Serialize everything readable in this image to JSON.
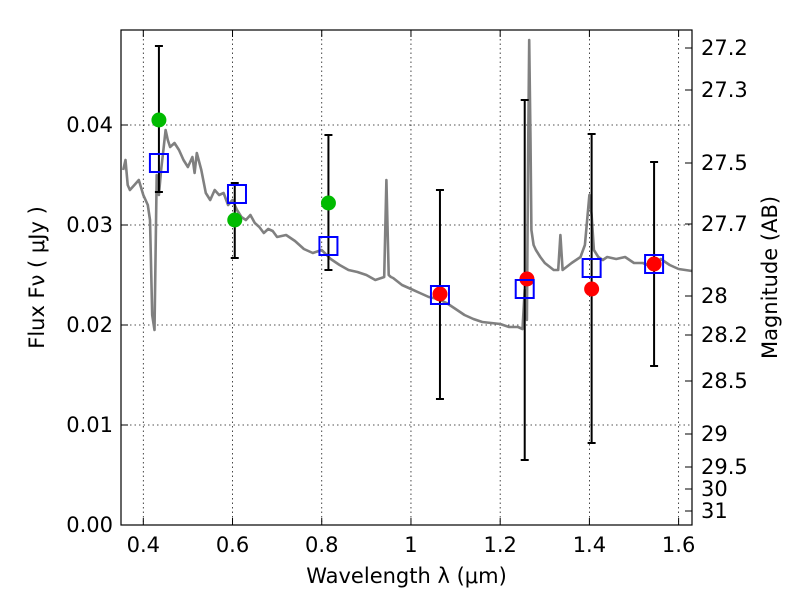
{
  "chart_data": {
    "type": "scatter",
    "xlabel": "Wavelength  λ (μm)",
    "ylabel": "Flux  Fν  ( μJy )",
    "y2label": "Magnitude (AB)",
    "xlim": [
      0.35,
      1.63
    ],
    "ylim": [
      0.0,
      0.0495
    ],
    "grid": true,
    "x_ticks": [
      {
        "value": 0.4,
        "label": "0.4"
      },
      {
        "value": 0.6,
        "label": "0.6"
      },
      {
        "value": 0.8,
        "label": "0.8"
      },
      {
        "value": 1.0,
        "label": "1"
      },
      {
        "value": 1.2,
        "label": "1.2"
      },
      {
        "value": 1.4,
        "label": "1.4"
      },
      {
        "value": 1.6,
        "label": "1.6"
      }
    ],
    "y_ticks": [
      {
        "value": 0.0,
        "label": "0.00"
      },
      {
        "value": 0.01,
        "label": "0.01"
      },
      {
        "value": 0.02,
        "label": "0.02"
      },
      {
        "value": 0.03,
        "label": "0.03"
      },
      {
        "value": 0.04,
        "label": "0.04"
      }
    ],
    "magnitude_ticks": [
      {
        "label": "27.2",
        "flux": 0.0477
      },
      {
        "label": "27.3",
        "flux": 0.0435
      },
      {
        "label": "27.5",
        "flux": 0.0362
      },
      {
        "label": "27.7",
        "flux": 0.0301
      },
      {
        "label": "28",
        "flux": 0.0229
      },
      {
        "label": "28.2",
        "flux": 0.019
      },
      {
        "label": "28.5",
        "flux": 0.0144
      },
      {
        "label": "29",
        "flux": 0.0091
      },
      {
        "label": "29.5",
        "flux": 0.0058
      },
      {
        "label": "30",
        "flux": 0.0036
      },
      {
        "label": "31",
        "flux": 0.0014
      }
    ],
    "model_spectrum": {
      "color": "#808080",
      "x": [
        0.355,
        0.36,
        0.365,
        0.37,
        0.38,
        0.39,
        0.4,
        0.41,
        0.415,
        0.42,
        0.425,
        0.43,
        0.435,
        0.44,
        0.445,
        0.45,
        0.455,
        0.46,
        0.47,
        0.48,
        0.49,
        0.5,
        0.51,
        0.515,
        0.52,
        0.53,
        0.54,
        0.55,
        0.56,
        0.57,
        0.58,
        0.59,
        0.6,
        0.61,
        0.62,
        0.63,
        0.64,
        0.65,
        0.66,
        0.67,
        0.68,
        0.69,
        0.7,
        0.72,
        0.74,
        0.76,
        0.78,
        0.8,
        0.82,
        0.84,
        0.86,
        0.88,
        0.9,
        0.92,
        0.94,
        0.945,
        0.95,
        0.955,
        0.96,
        0.98,
        1.0,
        1.02,
        1.04,
        1.06,
        1.08,
        1.1,
        1.12,
        1.14,
        1.16,
        1.18,
        1.2,
        1.22,
        1.24,
        1.25,
        1.255,
        1.26,
        1.263,
        1.265,
        1.268,
        1.27,
        1.275,
        1.28,
        1.29,
        1.3,
        1.32,
        1.33,
        1.335,
        1.34,
        1.36,
        1.38,
        1.39,
        1.4,
        1.405,
        1.41,
        1.42,
        1.43,
        1.44,
        1.46,
        1.48,
        1.5,
        1.52,
        1.54,
        1.56,
        1.58,
        1.6,
        1.63
      ],
      "y": [
        0.0355,
        0.0365,
        0.034,
        0.0335,
        0.034,
        0.0345,
        0.033,
        0.032,
        0.0305,
        0.021,
        0.0195,
        0.035,
        0.033,
        0.0355,
        0.0375,
        0.0395,
        0.0385,
        0.0378,
        0.0382,
        0.0375,
        0.0365,
        0.0358,
        0.0368,
        0.0352,
        0.0372,
        0.0355,
        0.0332,
        0.0325,
        0.0335,
        0.033,
        0.0332,
        0.032,
        0.0325,
        0.0315,
        0.0308,
        0.0305,
        0.031,
        0.0302,
        0.0298,
        0.0292,
        0.0296,
        0.0294,
        0.0288,
        0.029,
        0.0284,
        0.0276,
        0.0272,
        0.0275,
        0.0266,
        0.026,
        0.0255,
        0.0253,
        0.025,
        0.0245,
        0.0248,
        0.0345,
        0.025,
        0.0248,
        0.0247,
        0.024,
        0.0236,
        0.0232,
        0.0228,
        0.0226,
        0.0222,
        0.0216,
        0.021,
        0.0206,
        0.0203,
        0.0202,
        0.0201,
        0.0198,
        0.0198,
        0.0196,
        0.0235,
        0.0205,
        0.039,
        0.0485,
        0.0385,
        0.0295,
        0.028,
        0.0275,
        0.0268,
        0.0262,
        0.0255,
        0.0255,
        0.029,
        0.0255,
        0.0262,
        0.0268,
        0.028,
        0.033,
        0.031,
        0.0275,
        0.0268,
        0.0265,
        0.0268,
        0.0266,
        0.0268,
        0.0262,
        0.0262,
        0.0258,
        0.0266,
        0.026,
        0.0256,
        0.0254
      ]
    },
    "series": [
      {
        "kind": "green_circles",
        "color": "#00bb00",
        "x": [
          0.435,
          0.605,
          0.815
        ],
        "y": [
          0.0405,
          0.0305,
          0.0322
        ]
      },
      {
        "kind": "red_circles",
        "color": "#ff0000",
        "x": [
          1.065,
          1.26,
          1.405,
          1.545
        ],
        "y": [
          0.0231,
          0.0246,
          0.0236,
          0.0261
        ]
      },
      {
        "kind": "blue_squares",
        "color": "#0000ff",
        "x": [
          0.435,
          0.61,
          0.815,
          1.065,
          1.255,
          1.405,
          1.545
        ],
        "y": [
          0.0362,
          0.0331,
          0.0279,
          0.023,
          0.0236,
          0.0257,
          0.0261
        ]
      }
    ],
    "error_bars": [
      {
        "x": 0.435,
        "low": 0.0333,
        "high": 0.0479
      },
      {
        "x": 0.605,
        "low": 0.0267,
        "high": 0.0342
      },
      {
        "x": 0.815,
        "low": 0.0255,
        "high": 0.039
      },
      {
        "x": 1.065,
        "low": 0.0126,
        "high": 0.0335
      },
      {
        "x": 1.255,
        "low": 0.0065,
        "high": 0.0425
      },
      {
        "x": 1.405,
        "low": 0.0082,
        "high": 0.0391
      },
      {
        "x": 1.545,
        "low": 0.0159,
        "high": 0.0363
      }
    ]
  }
}
